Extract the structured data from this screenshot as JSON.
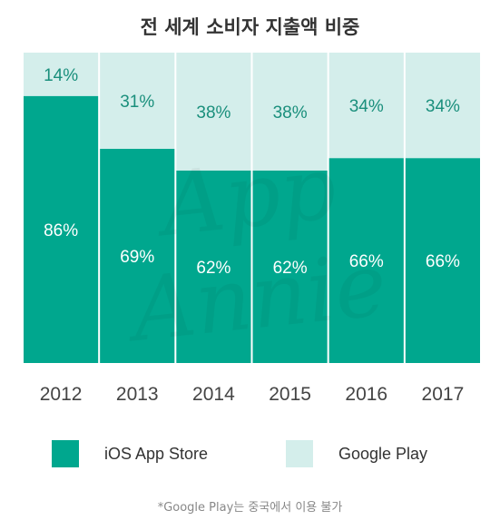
{
  "chart_data": {
    "type": "bar",
    "stacked": true,
    "percent_stacked": true,
    "title": "전 세계 소비자 지출액 비중",
    "categories": [
      "2012",
      "2013",
      "2014",
      "2015",
      "2016",
      "2017"
    ],
    "series": [
      {
        "name": "iOS App Store",
        "values": [
          86,
          69,
          62,
          62,
          66,
          66
        ],
        "labels": [
          "86%",
          "69%",
          "62%",
          "62%",
          "66%",
          "66%"
        ]
      },
      {
        "name": "Google Play",
        "values": [
          14,
          31,
          38,
          38,
          34,
          34
        ],
        "labels": [
          "14%",
          "31%",
          "38%",
          "38%",
          "34%",
          "34%"
        ]
      }
    ],
    "ylim": [
      0,
      100
    ],
    "grid": false,
    "legend": "bottom",
    "colors": {
      "ios": "#00A78E",
      "google_play": "#D4EEEB"
    }
  },
  "legend": {
    "ios_label": "iOS App Store",
    "gp_label": "Google Play"
  },
  "footnote": "*Google Play는 중국에서 이용 불가",
  "watermark": "App Annie"
}
